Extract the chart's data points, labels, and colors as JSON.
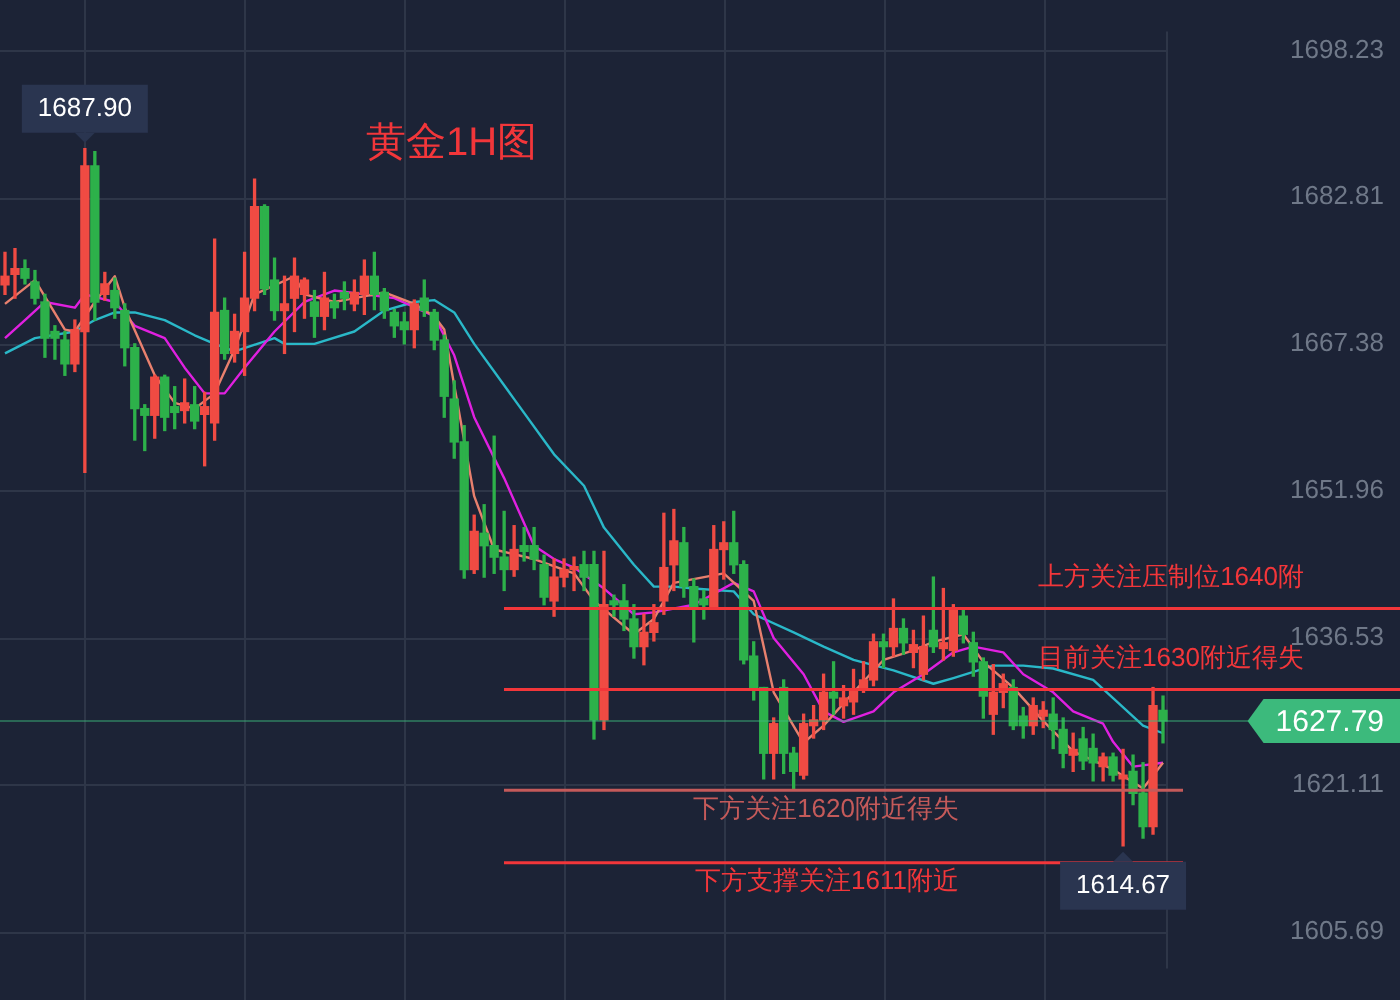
{
  "chart_data": {
    "type": "candlestick",
    "title": "黄金1H图",
    "categories": [
      null,
      null,
      null,
      null,
      null,
      null,
      null,
      null,
      null,
      null,
      null,
      null,
      null,
      null,
      null,
      null,
      null,
      null,
      null,
      null,
      null,
      null,
      null,
      null,
      null,
      null,
      null,
      null,
      null,
      null,
      null,
      null,
      null,
      null,
      null,
      null,
      null,
      null,
      null,
      null,
      null,
      null,
      null,
      null,
      null,
      null,
      null,
      null,
      null,
      null,
      null,
      null,
      null,
      null,
      null,
      null,
      null,
      null,
      null,
      null,
      null,
      null,
      null,
      null,
      null,
      null,
      null,
      null,
      null,
      null,
      null,
      null,
      null,
      null,
      null,
      null,
      null,
      null,
      null,
      null,
      null,
      null,
      null,
      null,
      null,
      null,
      null,
      null,
      null,
      null,
      null,
      null,
      null,
      null,
      null,
      null,
      null,
      null,
      null,
      null,
      null,
      null,
      null,
      null,
      null,
      null,
      null,
      null,
      null,
      null,
      null,
      null,
      null,
      null,
      null,
      null,
      null
    ],
    "ohlc": [
      [
        1673.6,
        1677.0,
        1672.6,
        1674.5
      ],
      [
        1674.7,
        1677.4,
        1672.2,
        1675.3
      ],
      [
        1675.3,
        1676.2,
        1673.7,
        1674.3
      ],
      [
        1673.9,
        1675.1,
        1671.6,
        1672.2
      ],
      [
        1671.8,
        1672.6,
        1666.0,
        1668.0
      ],
      [
        1668.7,
        1669.3,
        1665.8,
        1668.0
      ],
      [
        1667.8,
        1668.7,
        1664.1,
        1665.3
      ],
      [
        1665.3,
        1669.9,
        1664.5,
        1668.9
      ],
      [
        1668.7,
        1687.9,
        1653.9,
        1686.1
      ],
      [
        1686.1,
        1687.6,
        1669.9,
        1671.8
      ],
      [
        1672.6,
        1674.9,
        1672.0,
        1673.7
      ],
      [
        1673.0,
        1674.3,
        1670.1,
        1671.2
      ],
      [
        1670.9,
        1671.6,
        1665.1,
        1667.0
      ],
      [
        1667.0,
        1667.4,
        1657.3,
        1660.6
      ],
      [
        1660.6,
        1661.0,
        1656.2,
        1659.9
      ],
      [
        1659.9,
        1664.1,
        1657.5,
        1663.9
      ],
      [
        1663.9,
        1664.1,
        1658.3,
        1659.7
      ],
      [
        1660.8,
        1662.9,
        1658.5,
        1660.2
      ],
      [
        1660.4,
        1663.7,
        1659.1,
        1661.2
      ],
      [
        1661.0,
        1662.9,
        1658.5,
        1659.3
      ],
      [
        1660.0,
        1662.3,
        1654.6,
        1660.8
      ],
      [
        1659.1,
        1678.4,
        1657.3,
        1670.7
      ],
      [
        1670.9,
        1672.2,
        1665.8,
        1666.4
      ],
      [
        1666.4,
        1670.5,
        1665.5,
        1668.7
      ],
      [
        1668.7,
        1677.0,
        1664.1,
        1672.2
      ],
      [
        1672.2,
        1684.7,
        1670.9,
        1681.8
      ],
      [
        1681.8,
        1682.0,
        1672.6,
        1673.2
      ],
      [
        1674.1,
        1676.4,
        1669.9,
        1670.9
      ],
      [
        1670.9,
        1674.5,
        1666.4,
        1671.6
      ],
      [
        1672.2,
        1676.4,
        1668.7,
        1674.5
      ],
      [
        1672.6,
        1674.3,
        1670.1,
        1674.1
      ],
      [
        1671.8,
        1673.0,
        1668.1,
        1670.3
      ],
      [
        1670.3,
        1674.9,
        1668.9,
        1672.2
      ],
      [
        1671.8,
        1672.6,
        1670.1,
        1671.2
      ],
      [
        1672.8,
        1673.9,
        1671.0,
        1672.2
      ],
      [
        1671.6,
        1674.1,
        1670.9,
        1672.8
      ],
      [
        1672.6,
        1676.2,
        1670.5,
        1674.5
      ],
      [
        1674.5,
        1677.0,
        1671.0,
        1672.6
      ],
      [
        1672.8,
        1673.2,
        1670.1,
        1670.9
      ],
      [
        1670.7,
        1671.0,
        1668.1,
        1669.3
      ],
      [
        1669.7,
        1670.7,
        1667.4,
        1668.9
      ],
      [
        1668.9,
        1672.0,
        1667.0,
        1671.6
      ],
      [
        1672.2,
        1674.1,
        1670.3,
        1670.9
      ],
      [
        1670.7,
        1671.0,
        1666.8,
        1667.8
      ],
      [
        1667.8,
        1668.3,
        1659.7,
        1661.9
      ],
      [
        1661.6,
        1663.5,
        1655.4,
        1657.1
      ],
      [
        1657.1,
        1658.8,
        1642.8,
        1643.7
      ],
      [
        1643.7,
        1649.4,
        1643.3,
        1647.7
      ],
      [
        1647.5,
        1650.5,
        1642.9,
        1646.2
      ],
      [
        1646.2,
        1657.7,
        1643.3,
        1645.0
      ],
      [
        1645.0,
        1649.8,
        1641.5,
        1643.7
      ],
      [
        1643.7,
        1648.3,
        1643.0,
        1645.8
      ],
      [
        1646.2,
        1648.1,
        1644.6,
        1645.6
      ],
      [
        1646.2,
        1648.1,
        1643.7,
        1644.8
      ],
      [
        1644.2,
        1645.2,
        1640.0,
        1640.8
      ],
      [
        1640.4,
        1644.8,
        1638.8,
        1642.9
      ],
      [
        1642.9,
        1644.8,
        1641.9,
        1643.7
      ],
      [
        1643.7,
        1645.0,
        1641.5,
        1644.0
      ],
      [
        1644.2,
        1645.6,
        1641.5,
        1642.9
      ],
      [
        1644.2,
        1645.6,
        1625.9,
        1627.9
      ],
      [
        1627.9,
        1645.6,
        1626.9,
        1640.0
      ],
      [
        1640.4,
        1641.0,
        1638.8,
        1640.0
      ],
      [
        1640.4,
        1642.1,
        1637.3,
        1638.5
      ],
      [
        1638.5,
        1640.0,
        1634.4,
        1635.6
      ],
      [
        1635.6,
        1639.0,
        1633.7,
        1637.1
      ],
      [
        1637.1,
        1640.0,
        1636.2,
        1638.1
      ],
      [
        1640.4,
        1649.6,
        1639.0,
        1643.9
      ],
      [
        1644.2,
        1650.0,
        1641.5,
        1646.7
      ],
      [
        1646.5,
        1648.1,
        1640.8,
        1641.9
      ],
      [
        1641.9,
        1642.7,
        1636.1,
        1639.8
      ],
      [
        1640.6,
        1641.5,
        1638.5,
        1640.0
      ],
      [
        1639.8,
        1648.3,
        1639.6,
        1645.8
      ],
      [
        1645.8,
        1648.7,
        1642.7,
        1646.5
      ],
      [
        1646.5,
        1649.8,
        1643.3,
        1644.2
      ],
      [
        1644.2,
        1644.6,
        1633.8,
        1634.2
      ],
      [
        1634.6,
        1636.1,
        1630.0,
        1631.3
      ],
      [
        1631.3,
        1631.3,
        1621.7,
        1624.4
      ],
      [
        1624.4,
        1628.1,
        1621.7,
        1627.5
      ],
      [
        1631.3,
        1632.1,
        1622.3,
        1624.4
      ],
      [
        1624.4,
        1625.0,
        1620.5,
        1622.5
      ],
      [
        1622.1,
        1628.5,
        1621.7,
        1627.5
      ],
      [
        1627.3,
        1629.4,
        1626.0,
        1627.9
      ],
      [
        1627.9,
        1632.7,
        1626.9,
        1630.8
      ],
      [
        1630.8,
        1634.0,
        1628.5,
        1630.2
      ],
      [
        1629.4,
        1631.5,
        1628.1,
        1630.2
      ],
      [
        1629.8,
        1633.2,
        1628.5,
        1631.1
      ],
      [
        1631.1,
        1634.0,
        1630.8,
        1632.1
      ],
      [
        1632.1,
        1636.9,
        1631.5,
        1636.1
      ],
      [
        1636.1,
        1636.9,
        1633.4,
        1635.6
      ],
      [
        1635.6,
        1640.6,
        1634.6,
        1637.5
      ],
      [
        1637.5,
        1638.5,
        1634.8,
        1636.0
      ],
      [
        1635.0,
        1637.3,
        1633.4,
        1635.8
      ],
      [
        1632.7,
        1638.8,
        1632.1,
        1635.6
      ],
      [
        1637.3,
        1642.9,
        1635.0,
        1635.6
      ],
      [
        1635.4,
        1641.7,
        1634.2,
        1636.0
      ],
      [
        1635.2,
        1640.0,
        1634.6,
        1639.4
      ],
      [
        1638.8,
        1639.6,
        1636.0,
        1636.9
      ],
      [
        1636.0,
        1637.1,
        1632.5,
        1634.0
      ],
      [
        1634.0,
        1634.4,
        1628.1,
        1630.4
      ],
      [
        1628.5,
        1633.7,
        1626.4,
        1630.8
      ],
      [
        1630.8,
        1632.7,
        1629.2,
        1631.7
      ],
      [
        1631.3,
        1632.1,
        1626.9,
        1627.3
      ],
      [
        1628.3,
        1629.2,
        1626.0,
        1627.3
      ],
      [
        1627.3,
        1630.2,
        1626.4,
        1629.4
      ],
      [
        1628.3,
        1629.8,
        1627.1,
        1628.9
      ],
      [
        1628.5,
        1630.2,
        1624.9,
        1626.9
      ],
      [
        1626.9,
        1628.1,
        1622.9,
        1624.4
      ],
      [
        1624.2,
        1626.5,
        1622.5,
        1624.8
      ],
      [
        1625.9,
        1627.1,
        1622.7,
        1623.6
      ],
      [
        1624.9,
        1626.4,
        1621.5,
        1623.4
      ],
      [
        1623.0,
        1624.4,
        1621.5,
        1624.0
      ],
      [
        1624.0,
        1624.4,
        1621.5,
        1622.1
      ],
      [
        1621.7,
        1624.8,
        1614.67,
        1622.1
      ],
      [
        1622.5,
        1624.2,
        1619.0,
        1620.2
      ],
      [
        1620.2,
        1623.4,
        1615.5,
        1616.7
      ],
      [
        1616.7,
        1631.3,
        1615.9,
        1629.4
      ],
      [
        1628.9,
        1630.4,
        1625.5,
        1627.79
      ]
    ],
    "colors": [
      "#f04b43",
      "#f04b43",
      "#2db14a",
      "#2db14a",
      "#2db14a",
      "#2db14a",
      "#2db14a",
      "#f04b43",
      "#f04b43",
      "#2db14a",
      "#f04b43",
      "#2db14a",
      "#2db14a",
      "#2db14a",
      "#2db14a",
      "#f04b43",
      "#2db14a",
      "#2db14a",
      "#f04b43",
      "#2db14a",
      "#f04b43",
      "#f04b43",
      "#2db14a",
      "#f04b43",
      "#f04b43",
      "#f04b43",
      "#2db14a",
      "#2db14a",
      "#f04b43",
      "#f04b43",
      "#f04b43",
      "#2db14a",
      "#f04b43",
      "#2db14a",
      "#2db14a",
      "#f04b43",
      "#f04b43",
      "#2db14a",
      "#2db14a",
      "#2db14a",
      "#2db14a",
      "#f04b43",
      "#2db14a",
      "#2db14a",
      "#2db14a",
      "#2db14a",
      "#2db14a",
      "#f04b43",
      "#2db14a",
      "#2db14a",
      "#2db14a",
      "#f04b43",
      "#2db14a",
      "#2db14a",
      "#2db14a",
      "#f04b43",
      "#f04b43",
      "#f04b43",
      "#2db14a",
      "#2db14a",
      "#f04b43",
      "#2db14a",
      "#2db14a",
      "#2db14a",
      "#f04b43",
      "#f04b43",
      "#f04b43",
      "#f04b43",
      "#2db14a",
      "#2db14a",
      "#2db14a",
      "#f04b43",
      "#f04b43",
      "#2db14a",
      "#2db14a",
      "#2db14a",
      "#2db14a",
      "#f04b43",
      "#2db14a",
      "#2db14a",
      "#f04b43",
      "#f04b43",
      "#f04b43",
      "#2db14a",
      "#f04b43",
      "#f04b43",
      "#f04b43",
      "#f04b43",
      "#2db14a",
      "#f04b43",
      "#2db14a",
      "#f04b43",
      "#f04b43",
      "#2db14a",
      "#f04b43",
      "#f04b43",
      "#2db14a",
      "#2db14a",
      "#2db14a",
      "#f04b43",
      "#f04b43",
      "#2db14a",
      "#2db14a",
      "#f04b43",
      "#f04b43",
      "#2db14a",
      "#2db14a",
      "#f04b43",
      "#2db14a",
      "#2db14a",
      "#f04b43",
      "#2db14a",
      "#f04b43",
      "#2db14a",
      "#2db14a",
      "#f04b43",
      "#2db14a"
    ],
    "series": [
      {
        "type": "line",
        "color": "#e8806e",
        "values": [
          1671.6,
          null,
          null,
          1674.1,
          null,
          null,
          1668.9,
          1668.7,
          null,
          1671.8,
          null,
          1674.5,
          1671.2,
          null,
          null,
          1664.1,
          null,
          1661.2,
          null,
          1660.6,
          null,
          1662.2,
          null,
          1666.8,
          null,
          1672.6,
          null,
          null,
          null,
          1674.5,
          1672.6,
          null,
          null,
          1671.8,
          null,
          1672.2,
          null,
          null,
          1672.8,
          null,
          null,
          1671.6,
          null,
          1670.3,
          1668.9,
          null,
          null,
          1651.4,
          null,
          1645.8,
          null,
          null,
          null,
          1644.8,
          null,
          null,
          null,
          1643.3,
          null,
          1640.4,
          null,
          null,
          null,
          1636.9,
          null,
          1638.5,
          null,
          1642.3,
          null,
          null,
          null,
          null,
          1643.3,
          null,
          null,
          1640.4,
          null,
          1630.8,
          null,
          null,
          1625.5,
          null,
          1627.3,
          null,
          null,
          1630.8,
          null,
          null,
          1634.2,
          null,
          null,
          1635.2,
          null,
          1636.1,
          null,
          null,
          1636.9,
          null,
          1634.0,
          null,
          null,
          1631.3,
          null,
          null,
          1627.8,
          null,
          null,
          1624.6,
          null,
          null,
          null,
          1622.7,
          null,
          null,
          1620.7,
          null,
          1623.4
        ]
      },
      {
        "type": "line",
        "color": "#e020e0",
        "values": [
          1668.0,
          null,
          1669.9,
          null,
          1671.8,
          null,
          null,
          1671.2,
          1672.6,
          null,
          null,
          1671.8,
          null,
          1669.3,
          null,
          null,
          1668.0,
          null,
          1664.9,
          null,
          1662.2,
          null,
          1662.2,
          null,
          1664.9,
          null,
          null,
          1668.7,
          null,
          null,
          1671.8,
          null,
          null,
          1673.0,
          null,
          null,
          1672.6,
          null,
          null,
          1672.2,
          null,
          null,
          null,
          1670.3,
          null,
          1666.2,
          null,
          1659.7,
          null,
          null,
          1653.3,
          null,
          null,
          1646.2,
          null,
          1644.8,
          null,
          1643.9,
          null,
          null,
          1641.7,
          null,
          null,
          1639.0,
          null,
          1639.2,
          null,
          null,
          null,
          1640.0,
          null,
          null,
          null,
          1642.3,
          null,
          1641.4,
          null,
          1636.5,
          null,
          null,
          1632.7,
          null,
          1628.8,
          null,
          1627.7,
          null,
          null,
          1628.8,
          null,
          1630.8,
          null,
          null,
          1632.7,
          null,
          null,
          1635.0,
          null,
          1635.6,
          null,
          null,
          1635.0,
          null,
          1632.7,
          null,
          null,
          1630.8,
          null,
          1628.8,
          null,
          null,
          1627.5,
          1625.6,
          null,
          1623.0,
          null,
          null,
          1623.4
        ]
      },
      {
        "type": "line",
        "color": "#2ab8c8",
        "values": [
          1666.4,
          null,
          null,
          1668.0,
          null,
          null,
          null,
          1668.7,
          null,
          1669.9,
          null,
          1670.7,
          null,
          1670.7,
          null,
          null,
          1669.9,
          null,
          null,
          1668.3,
          null,
          1667.4,
          null,
          1666.6,
          null,
          null,
          null,
          1668.0,
          1667.4,
          null,
          null,
          1667.4,
          null,
          null,
          null,
          1668.7,
          null,
          null,
          1670.9,
          null,
          null,
          1671.8,
          null,
          1672.0,
          null,
          1670.7,
          null,
          1667.4,
          null,
          null,
          null,
          1661.6,
          null,
          null,
          null,
          1655.8,
          null,
          null,
          1652.5,
          null,
          1648.1,
          null,
          null,
          1644.2,
          null,
          1641.9,
          null,
          1641.9,
          null,
          1641.7,
          null,
          null,
          null,
          1641.4,
          null,
          1639.0,
          null,
          null,
          null,
          1637.1,
          null,
          null,
          1635.6,
          null,
          null,
          1634.2,
          null,
          null,
          null,
          1633.1,
          null,
          null,
          null,
          1631.7,
          null,
          1632.3,
          null,
          null,
          null,
          1633.6,
          null,
          null,
          1633.6,
          null,
          null,
          1633.3,
          null,
          null,
          null,
          1632.1,
          null,
          1630.2,
          null,
          null,
          1627.3,
          null,
          1626.5
        ]
      }
    ],
    "ylim": [
      1601.8,
      1700.2
    ],
    "yticks": [
      1605.69,
      1621.11,
      1636.53,
      1651.96,
      1667.38,
      1682.81,
      1698.23
    ],
    "tick_labels": "y",
    "grid": true,
    "ref_lines": [
      {
        "axis": "y",
        "value": 1639.6,
        "label": "上方关注压制位1640附",
        "color": "#f2363a"
      },
      {
        "axis": "y",
        "value": 1631.1,
        "label": "目前关注1630附近得失",
        "color": "#f2363a"
      },
      {
        "axis": "y",
        "value": 1627.79,
        "label": "1627.79",
        "color": "#3cba7c"
      },
      {
        "axis": "y",
        "value": 1620.5,
        "label": "下方关注1620附近得失",
        "color": "#c45a5a"
      },
      {
        "axis": "y",
        "value": 1612.9,
        "label": "下方支撑关注1611附近",
        "color": "#f2363a"
      }
    ],
    "annotations": [
      "1687.90",
      "1614.67"
    ]
  }
}
